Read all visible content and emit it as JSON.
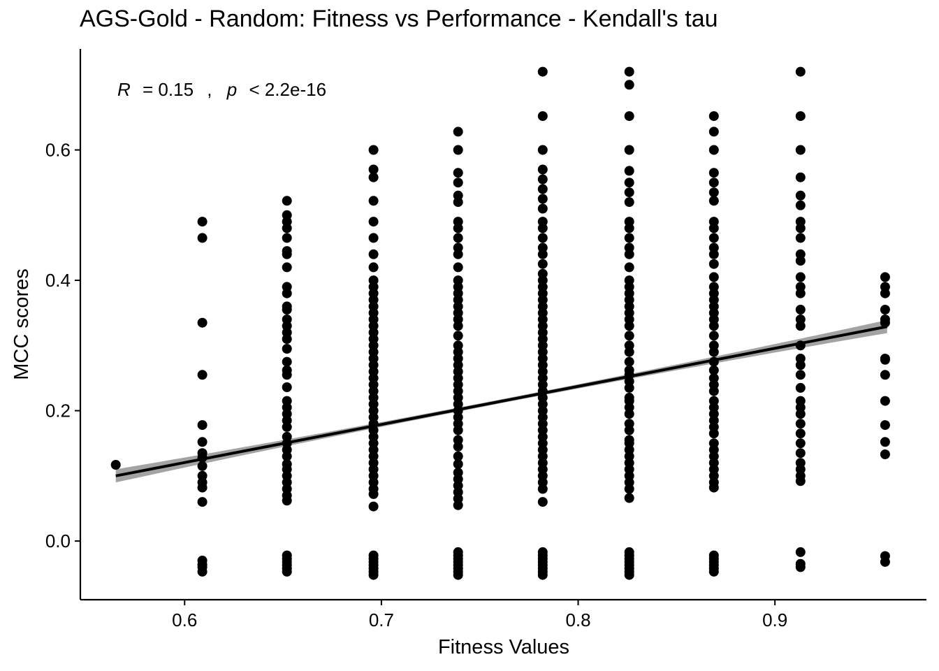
{
  "chart_data": {
    "type": "scatter",
    "title": "AGS-Gold - Random: Fitness vs Performance - Kendall's tau",
    "xlabel": "Fitness Values",
    "ylabel": "MCC scores",
    "xlim": [
      0.547,
      0.977
    ],
    "ylim": [
      -0.09,
      0.755
    ],
    "xticks": [
      0.6,
      0.7,
      0.8,
      0.9
    ],
    "yticks": [
      0.0,
      0.2,
      0.4,
      0.6
    ],
    "xtick_labels": [
      "0.6",
      "0.7",
      "0.8",
      "0.9"
    ],
    "ytick_labels": [
      "0.0",
      "0.2",
      "0.4",
      "0.6"
    ],
    "grid": false,
    "legend": "none",
    "annotation": {
      "r_label": "R",
      "r_value": "= 0.15",
      "sep": ",",
      "p_label": "p",
      "p_value": "< 2.2e-16"
    },
    "regression": {
      "x": [
        0.565,
        0.957
      ],
      "y": [
        0.1,
        0.329
      ],
      "band_halfwidth_end": 0.01,
      "band_halfwidth_mid": 0.003,
      "color": "#000000",
      "band_color": "#999999"
    },
    "point_color": "#000000",
    "series": [
      {
        "x": 0.565,
        "y": [
          0.117
        ]
      },
      {
        "x": 0.609,
        "y": [
          0.49,
          0.465,
          0.335,
          0.255,
          0.178,
          0.152,
          0.135,
          0.128,
          0.115,
          0.1,
          0.09,
          0.082,
          0.06,
          -0.03,
          -0.036,
          -0.04,
          -0.047
        ]
      },
      {
        "x": 0.652,
        "y": [
          0.522,
          0.5,
          0.49,
          0.48,
          0.465,
          0.445,
          0.44,
          0.42,
          0.39,
          0.38,
          0.36,
          0.355,
          0.34,
          0.33,
          0.32,
          0.31,
          0.295,
          0.275,
          0.262,
          0.255,
          0.236,
          0.215,
          0.205,
          0.195,
          0.185,
          0.175,
          0.16,
          0.15,
          0.14,
          0.13,
          0.118,
          0.11,
          0.1,
          0.09,
          0.08,
          0.07,
          0.062,
          -0.022,
          -0.027,
          -0.032,
          -0.037,
          -0.042,
          -0.047
        ]
      },
      {
        "x": 0.696,
        "y": [
          0.6,
          0.57,
          0.558,
          0.522,
          0.49,
          0.465,
          0.44,
          0.42,
          0.4,
          0.39,
          0.38,
          0.37,
          0.36,
          0.35,
          0.34,
          0.33,
          0.32,
          0.31,
          0.3,
          0.29,
          0.28,
          0.27,
          0.26,
          0.25,
          0.24,
          0.23,
          0.22,
          0.21,
          0.2,
          0.19,
          0.18,
          0.17,
          0.16,
          0.15,
          0.14,
          0.13,
          0.12,
          0.11,
          0.1,
          0.09,
          0.08,
          0.072,
          0.053,
          -0.022,
          -0.027,
          -0.032,
          -0.037,
          -0.042,
          -0.047,
          -0.052
        ]
      },
      {
        "x": 0.739,
        "y": [
          0.628,
          0.6,
          0.565,
          0.55,
          0.53,
          0.52,
          0.49,
          0.48,
          0.465,
          0.45,
          0.44,
          0.42,
          0.4,
          0.39,
          0.38,
          0.37,
          0.36,
          0.35,
          0.34,
          0.33,
          0.315,
          0.3,
          0.29,
          0.28,
          0.27,
          0.26,
          0.25,
          0.24,
          0.23,
          0.22,
          0.21,
          0.2,
          0.19,
          0.18,
          0.17,
          0.155,
          0.145,
          0.13,
          0.118,
          0.105,
          0.095,
          0.085,
          0.075,
          0.065,
          0.055,
          -0.017,
          -0.022,
          -0.027,
          -0.032,
          -0.037,
          -0.042,
          -0.047,
          -0.052
        ]
      },
      {
        "x": 0.782,
        "y": [
          0.72,
          0.652,
          0.6,
          0.57,
          0.555,
          0.54,
          0.525,
          0.51,
          0.49,
          0.48,
          0.465,
          0.45,
          0.44,
          0.425,
          0.41,
          0.4,
          0.39,
          0.38,
          0.37,
          0.36,
          0.35,
          0.34,
          0.33,
          0.32,
          0.31,
          0.3,
          0.29,
          0.28,
          0.27,
          0.26,
          0.25,
          0.24,
          0.23,
          0.22,
          0.21,
          0.2,
          0.19,
          0.18,
          0.17,
          0.16,
          0.15,
          0.14,
          0.13,
          0.12,
          0.11,
          0.1,
          0.09,
          0.08,
          0.06,
          -0.017,
          -0.022,
          -0.027,
          -0.032,
          -0.037,
          -0.042,
          -0.047,
          -0.052
        ]
      },
      {
        "x": 0.826,
        "y": [
          0.72,
          0.7,
          0.652,
          0.6,
          0.568,
          0.55,
          0.535,
          0.52,
          0.49,
          0.48,
          0.465,
          0.45,
          0.44,
          0.42,
          0.4,
          0.39,
          0.38,
          0.37,
          0.36,
          0.35,
          0.34,
          0.33,
          0.315,
          0.3,
          0.29,
          0.275,
          0.262,
          0.255,
          0.245,
          0.235,
          0.22,
          0.215,
          0.205,
          0.195,
          0.18,
          0.17,
          0.155,
          0.15,
          0.14,
          0.13,
          0.12,
          0.11,
          0.1,
          0.09,
          0.08,
          0.066,
          -0.017,
          -0.022,
          -0.027,
          -0.032,
          -0.037,
          -0.042,
          -0.047,
          -0.052
        ]
      },
      {
        "x": 0.869,
        "y": [
          0.652,
          0.628,
          0.6,
          0.565,
          0.55,
          0.535,
          0.522,
          0.49,
          0.48,
          0.465,
          0.45,
          0.44,
          0.425,
          0.405,
          0.39,
          0.38,
          0.37,
          0.36,
          0.35,
          0.34,
          0.33,
          0.315,
          0.3,
          0.29,
          0.275,
          0.262,
          0.25,
          0.24,
          0.23,
          0.215,
          0.205,
          0.195,
          0.185,
          0.175,
          0.165,
          0.15,
          0.14,
          0.13,
          0.12,
          0.11,
          0.1,
          0.09,
          0.082,
          -0.022,
          -0.027,
          -0.032,
          -0.037,
          -0.042,
          -0.047
        ]
      },
      {
        "x": 0.913,
        "y": [
          0.72,
          0.652,
          0.6,
          0.558,
          0.53,
          0.515,
          0.49,
          0.48,
          0.465,
          0.44,
          0.43,
          0.405,
          0.39,
          0.38,
          0.355,
          0.34,
          0.33,
          0.3,
          0.28,
          0.27,
          0.255,
          0.235,
          0.215,
          0.205,
          0.195,
          0.18,
          0.165,
          0.15,
          0.135,
          0.12,
          0.11,
          0.1,
          0.092,
          -0.017,
          -0.035,
          -0.04
        ]
      },
      {
        "x": 0.956,
        "y": [
          0.405,
          0.39,
          0.38,
          0.355,
          0.34,
          0.335,
          0.28,
          0.278,
          0.255,
          0.215,
          0.178,
          0.152,
          0.133,
          -0.023,
          -0.032
        ]
      }
    ]
  }
}
